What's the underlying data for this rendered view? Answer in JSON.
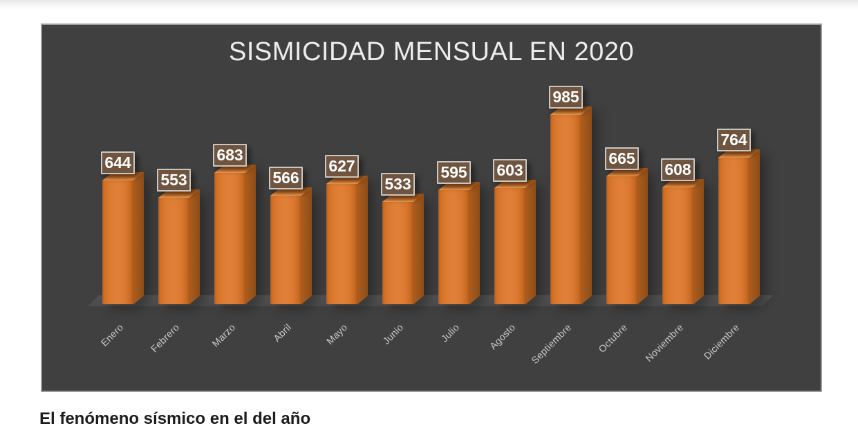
{
  "chart_data": {
    "type": "bar",
    "style": "3d-column",
    "title": "SISMICIDAD MENSUAL EN 2020",
    "categories": [
      "Enero",
      "Febrero",
      "Marzo",
      "Abril",
      "Mayo",
      "Junio",
      "Julio",
      "Agosto",
      "Septiembre",
      "Octubre",
      "Noviembre",
      "Diciembre"
    ],
    "values": [
      644,
      553,
      683,
      566,
      627,
      533,
      595,
      603,
      985,
      665,
      608,
      764
    ],
    "xlabel": "",
    "ylabel": "",
    "legend": "none",
    "gridlines": false,
    "data_labels": true,
    "value_axis_visible": false
  },
  "colors": {
    "panel_background": "#404040",
    "panel_border": "#9c9c9c",
    "bar_front": "#DD7A31",
    "bar_side": "#9A5318",
    "bar_top": "#EF9C50",
    "floor": "#4E4E4E",
    "data_label_fill": "#6F5440",
    "data_label_border": "#C9C7C3",
    "data_label_text": "#FFFFFF",
    "category_label_text": "#C9C9C9",
    "title_text": "#EDEDED"
  },
  "caption": {
    "text": "El fenómeno sísmico en el del año"
  }
}
